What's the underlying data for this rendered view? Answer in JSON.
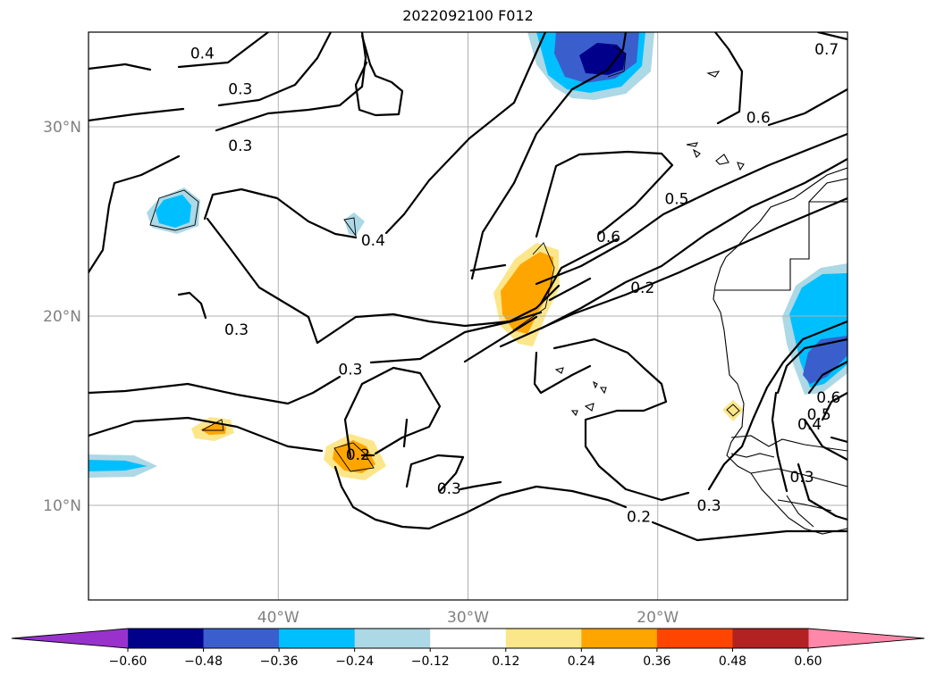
{
  "title": "2022092100 F012",
  "chart_data": {
    "type": "contour-map",
    "title": "2022092100 F012",
    "map_extent": {
      "lon": [
        -50,
        -10
      ],
      "lat": [
        5,
        35
      ]
    },
    "grid": true,
    "lon_ticks": [
      {
        "value": -40,
        "label": "40°W"
      },
      {
        "value": -30,
        "label": "30°W"
      },
      {
        "value": -20,
        "label": "20°W"
      }
    ],
    "lat_ticks": [
      {
        "value": 10,
        "label": "10°N"
      },
      {
        "value": 20,
        "label": "20°N"
      },
      {
        "value": 30,
        "label": "30°N"
      }
    ],
    "colorbar": {
      "extend": "both",
      "boundaries": [
        -0.72,
        -0.6,
        -0.48,
        -0.36,
        -0.24,
        -0.12,
        0.12,
        0.24,
        0.36,
        0.48,
        0.6,
        0.72
      ],
      "labels": [
        "−0.60",
        "−0.48",
        "−0.36",
        "−0.24",
        "−0.12",
        "0.12",
        "0.24",
        "0.36",
        "0.48",
        "0.60"
      ],
      "under_color": "#9932cc",
      "over_color": "#ff88aa",
      "colors": [
        "#00008b",
        "#3a5fcd",
        "#00bfff",
        "#add8e6",
        "#ffffff",
        "#fce68a",
        "#ffa500",
        "#ff4500",
        "#b22222"
      ]
    },
    "contour_labels": [
      {
        "text": "0.4",
        "lon": -44.0,
        "lat": 33.9
      },
      {
        "text": "0.3",
        "lon": -42.0,
        "lat": 32.0
      },
      {
        "text": "0.3",
        "lon": -42.0,
        "lat": 29.0
      },
      {
        "text": "0.4",
        "lon": -35.0,
        "lat": 24.0
      },
      {
        "text": "0.3",
        "lon": -42.2,
        "lat": 19.3
      },
      {
        "text": "0.6",
        "lon": -14.7,
        "lat": 30.5
      },
      {
        "text": "0.5",
        "lon": -19.0,
        "lat": 26.2
      },
      {
        "text": "0.6",
        "lon": -22.6,
        "lat": 24.2
      },
      {
        "text": "0.2",
        "lon": -20.8,
        "lat": 21.5
      },
      {
        "text": "0.3",
        "lon": -36.2,
        "lat": 17.2
      },
      {
        "text": "0.2",
        "lon": -35.8,
        "lat": 12.7
      },
      {
        "text": "0.3",
        "lon": -31.0,
        "lat": 10.9
      },
      {
        "text": "0.2",
        "lon": -21.0,
        "lat": 9.4
      },
      {
        "text": "0.3",
        "lon": -17.3,
        "lat": 10.0
      },
      {
        "text": "0.7",
        "lon": -11.1,
        "lat": 34.1
      },
      {
        "text": "0.6",
        "lon": -11.0,
        "lat": 15.7
      },
      {
        "text": "0.5",
        "lon": -11.5,
        "lat": 14.8
      },
      {
        "text": "0.4",
        "lon": -12.0,
        "lat": 14.3
      },
      {
        "text": "0.3",
        "lon": -12.4,
        "lat": 11.5
      }
    ]
  }
}
